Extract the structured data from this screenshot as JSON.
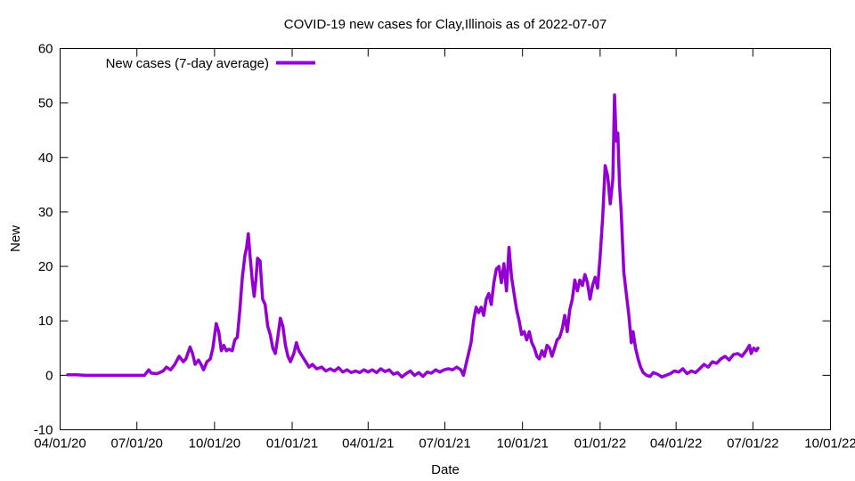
{
  "chart_data": {
    "type": "line",
    "title": "COVID-19 new cases for Clay,Illinois as of 2022-07-07",
    "xlabel": "Date",
    "ylabel": "New",
    "xlim": [
      "2020-04-01",
      "2022-10-01"
    ],
    "ylim": [
      -10,
      60
    ],
    "x_ticks": [
      "04/01/20",
      "07/01/20",
      "10/01/20",
      "01/01/21",
      "04/01/21",
      "07/01/21",
      "10/01/21",
      "01/01/22",
      "04/01/22",
      "07/01/22",
      "10/01/22"
    ],
    "x_tick_dates": [
      "2020-04-01",
      "2020-07-01",
      "2020-10-01",
      "2021-01-01",
      "2021-04-01",
      "2021-07-01",
      "2021-10-01",
      "2022-01-01",
      "2022-04-01",
      "2022-07-01",
      "2022-10-01"
    ],
    "y_ticks": [
      -10,
      0,
      10,
      20,
      30,
      40,
      50,
      60
    ],
    "grid": false,
    "legend_position": "top-left",
    "series": [
      {
        "name": "New cases (7-day average)",
        "color": "#9400d3",
        "points": [
          [
            "2020-04-10",
            0.1
          ],
          [
            "2020-04-20",
            0.1
          ],
          [
            "2020-05-01",
            0.0
          ],
          [
            "2020-05-15",
            0.0
          ],
          [
            "2020-06-01",
            0.0
          ],
          [
            "2020-06-15",
            0.0
          ],
          [
            "2020-07-01",
            0.0
          ],
          [
            "2020-07-10",
            0.0
          ],
          [
            "2020-07-15",
            1.0
          ],
          [
            "2020-07-18",
            0.4
          ],
          [
            "2020-07-25",
            0.3
          ],
          [
            "2020-08-01",
            0.8
          ],
          [
            "2020-08-05",
            1.5
          ],
          [
            "2020-08-10",
            1.0
          ],
          [
            "2020-08-15",
            2.0
          ],
          [
            "2020-08-20",
            3.5
          ],
          [
            "2020-08-25",
            2.5
          ],
          [
            "2020-08-28",
            3.0
          ],
          [
            "2020-09-02",
            5.2
          ],
          [
            "2020-09-05",
            4.0
          ],
          [
            "2020-09-08",
            2.0
          ],
          [
            "2020-09-12",
            2.8
          ],
          [
            "2020-09-15",
            2.0
          ],
          [
            "2020-09-18",
            1.0
          ],
          [
            "2020-09-22",
            2.5
          ],
          [
            "2020-09-26",
            3.0
          ],
          [
            "2020-09-29",
            5.0
          ],
          [
            "2020-10-03",
            9.5
          ],
          [
            "2020-10-06",
            8.0
          ],
          [
            "2020-10-09",
            4.5
          ],
          [
            "2020-10-12",
            5.5
          ],
          [
            "2020-10-15",
            4.5
          ],
          [
            "2020-10-18",
            4.8
          ],
          [
            "2020-10-22",
            4.5
          ],
          [
            "2020-10-25",
            6.5
          ],
          [
            "2020-10-28",
            7.0
          ],
          [
            "2020-10-31",
            12.0
          ],
          [
            "2020-11-03",
            18.0
          ],
          [
            "2020-11-06",
            22.0
          ],
          [
            "2020-11-08",
            23.5
          ],
          [
            "2020-11-10",
            26.0
          ],
          [
            "2020-11-12",
            22.0
          ],
          [
            "2020-11-15",
            17.0
          ],
          [
            "2020-11-17",
            14.5
          ],
          [
            "2020-11-19",
            17.5
          ],
          [
            "2020-11-21",
            21.5
          ],
          [
            "2020-11-24",
            21.0
          ],
          [
            "2020-11-27",
            14.0
          ],
          [
            "2020-11-30",
            13.0
          ],
          [
            "2020-12-03",
            9.0
          ],
          [
            "2020-12-06",
            7.5
          ],
          [
            "2020-12-09",
            5.0
          ],
          [
            "2020-12-12",
            4.0
          ],
          [
            "2020-12-15",
            7.0
          ],
          [
            "2020-12-18",
            10.5
          ],
          [
            "2020-12-21",
            9.0
          ],
          [
            "2020-12-24",
            5.5
          ],
          [
            "2020-12-27",
            3.5
          ],
          [
            "2020-12-30",
            2.5
          ],
          [
            "2021-01-03",
            4.0
          ],
          [
            "2021-01-06",
            6.0
          ],
          [
            "2021-01-09",
            4.5
          ],
          [
            "2021-01-13",
            3.5
          ],
          [
            "2021-01-17",
            2.5
          ],
          [
            "2021-01-21",
            1.5
          ],
          [
            "2021-01-25",
            2.0
          ],
          [
            "2021-01-30",
            1.2
          ],
          [
            "2021-02-05",
            1.5
          ],
          [
            "2021-02-10",
            0.8
          ],
          [
            "2021-02-15",
            1.2
          ],
          [
            "2021-02-20",
            0.8
          ],
          [
            "2021-02-25",
            1.4
          ],
          [
            "2021-03-02",
            0.6
          ],
          [
            "2021-03-07",
            1.0
          ],
          [
            "2021-03-12",
            0.5
          ],
          [
            "2021-03-17",
            0.8
          ],
          [
            "2021-03-22",
            0.5
          ],
          [
            "2021-03-27",
            1.0
          ],
          [
            "2021-04-01",
            0.6
          ],
          [
            "2021-04-06",
            1.0
          ],
          [
            "2021-04-11",
            0.5
          ],
          [
            "2021-04-16",
            1.2
          ],
          [
            "2021-04-21",
            0.7
          ],
          [
            "2021-04-26",
            1.0
          ],
          [
            "2021-05-01",
            0.2
          ],
          [
            "2021-05-06",
            0.5
          ],
          [
            "2021-05-11",
            -0.3
          ],
          [
            "2021-05-16",
            0.3
          ],
          [
            "2021-05-21",
            0.8
          ],
          [
            "2021-05-26",
            0.0
          ],
          [
            "2021-05-31",
            0.5
          ],
          [
            "2021-06-05",
            -0.2
          ],
          [
            "2021-06-10",
            0.6
          ],
          [
            "2021-06-15",
            0.4
          ],
          [
            "2021-06-20",
            1.0
          ],
          [
            "2021-06-25",
            0.6
          ],
          [
            "2021-06-30",
            1.0
          ],
          [
            "2021-07-05",
            1.2
          ],
          [
            "2021-07-10",
            1.0
          ],
          [
            "2021-07-15",
            1.5
          ],
          [
            "2021-07-20",
            1.0
          ],
          [
            "2021-07-23",
            0.0
          ],
          [
            "2021-07-26",
            2.0
          ],
          [
            "2021-07-29",
            4.0
          ],
          [
            "2021-08-01",
            6.0
          ],
          [
            "2021-08-04",
            10.0
          ],
          [
            "2021-08-07",
            12.5
          ],
          [
            "2021-08-10",
            11.5
          ],
          [
            "2021-08-13",
            12.5
          ],
          [
            "2021-08-16",
            11.0
          ],
          [
            "2021-08-19",
            14.0
          ],
          [
            "2021-08-22",
            15.0
          ],
          [
            "2021-08-25",
            13.0
          ],
          [
            "2021-08-28",
            17.0
          ],
          [
            "2021-08-31",
            19.5
          ],
          [
            "2021-09-03",
            20.0
          ],
          [
            "2021-09-06",
            17.0
          ],
          [
            "2021-09-09",
            20.5
          ],
          [
            "2021-09-12",
            15.5
          ],
          [
            "2021-09-15",
            23.5
          ],
          [
            "2021-09-18",
            18.0
          ],
          [
            "2021-09-21",
            15.0
          ],
          [
            "2021-09-24",
            12.0
          ],
          [
            "2021-09-27",
            10.0
          ],
          [
            "2021-09-30",
            7.5
          ],
          [
            "2021-10-03",
            8.0
          ],
          [
            "2021-10-06",
            6.5
          ],
          [
            "2021-10-09",
            8.0
          ],
          [
            "2021-10-12",
            6.0
          ],
          [
            "2021-10-15",
            5.0
          ],
          [
            "2021-10-18",
            3.5
          ],
          [
            "2021-10-21",
            3.0
          ],
          [
            "2021-10-24",
            4.5
          ],
          [
            "2021-10-27",
            3.5
          ],
          [
            "2021-10-30",
            5.5
          ],
          [
            "2021-11-02",
            5.0
          ],
          [
            "2021-11-05",
            3.5
          ],
          [
            "2021-11-08",
            5.0
          ],
          [
            "2021-11-11",
            6.5
          ],
          [
            "2021-11-14",
            7.0
          ],
          [
            "2021-11-17",
            8.5
          ],
          [
            "2021-11-20",
            11.0
          ],
          [
            "2021-11-23",
            8.0
          ],
          [
            "2021-11-26",
            12.0
          ],
          [
            "2021-11-29",
            14.0
          ],
          [
            "2021-12-02",
            17.5
          ],
          [
            "2021-12-05",
            15.5
          ],
          [
            "2021-12-08",
            17.5
          ],
          [
            "2021-12-11",
            16.5
          ],
          [
            "2021-12-14",
            18.5
          ],
          [
            "2021-12-17",
            17.0
          ],
          [
            "2021-12-20",
            14.0
          ],
          [
            "2021-12-23",
            16.5
          ],
          [
            "2021-12-26",
            18.0
          ],
          [
            "2021-12-29",
            16.0
          ],
          [
            "2022-01-01",
            22.0
          ],
          [
            "2022-01-04",
            29.0
          ],
          [
            "2022-01-07",
            38.5
          ],
          [
            "2022-01-10",
            36.5
          ],
          [
            "2022-01-13",
            31.5
          ],
          [
            "2022-01-16",
            36.0
          ],
          [
            "2022-01-18",
            51.5
          ],
          [
            "2022-01-20",
            43.0
          ],
          [
            "2022-01-22",
            44.5
          ],
          [
            "2022-01-24",
            35.0
          ],
          [
            "2022-01-26",
            30.0
          ],
          [
            "2022-01-29",
            19.0
          ],
          [
            "2022-02-01",
            15.0
          ],
          [
            "2022-02-04",
            11.0
          ],
          [
            "2022-02-07",
            6.0
          ],
          [
            "2022-02-09",
            8.0
          ],
          [
            "2022-02-12",
            5.0
          ],
          [
            "2022-02-15",
            3.0
          ],
          [
            "2022-02-18",
            1.5
          ],
          [
            "2022-02-21",
            0.5
          ],
          [
            "2022-02-25",
            0.0
          ],
          [
            "2022-03-01",
            -0.2
          ],
          [
            "2022-03-05",
            0.5
          ],
          [
            "2022-03-10",
            0.2
          ],
          [
            "2022-03-15",
            -0.3
          ],
          [
            "2022-03-20",
            0.0
          ],
          [
            "2022-03-25",
            0.3
          ],
          [
            "2022-03-30",
            0.8
          ],
          [
            "2022-04-04",
            0.6
          ],
          [
            "2022-04-09",
            1.2
          ],
          [
            "2022-04-14",
            0.3
          ],
          [
            "2022-04-19",
            0.8
          ],
          [
            "2022-04-24",
            0.5
          ],
          [
            "2022-04-29",
            1.2
          ],
          [
            "2022-05-04",
            2.0
          ],
          [
            "2022-05-09",
            1.5
          ],
          [
            "2022-05-14",
            2.5
          ],
          [
            "2022-05-19",
            2.2
          ],
          [
            "2022-05-24",
            3.0
          ],
          [
            "2022-05-29",
            3.5
          ],
          [
            "2022-06-03",
            2.8
          ],
          [
            "2022-06-08",
            3.8
          ],
          [
            "2022-06-13",
            4.0
          ],
          [
            "2022-06-18",
            3.5
          ],
          [
            "2022-06-23",
            4.5
          ],
          [
            "2022-06-27",
            5.5
          ],
          [
            "2022-06-29",
            4.0
          ],
          [
            "2022-07-02",
            5.0
          ],
          [
            "2022-07-05",
            4.5
          ],
          [
            "2022-07-07",
            5.0
          ]
        ]
      }
    ]
  }
}
